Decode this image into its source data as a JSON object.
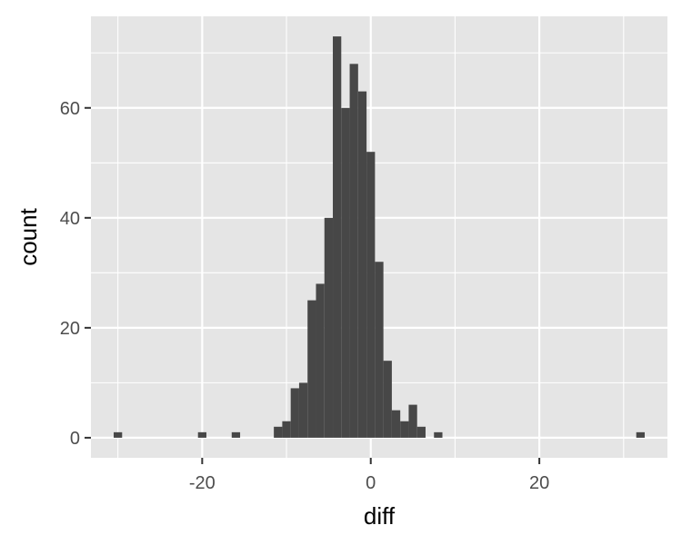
{
  "chart_data": {
    "type": "bar",
    "xlabel": "diff",
    "ylabel": "count",
    "xlim": [
      -33.2,
      35.2
    ],
    "ylim": [
      -3.65,
      76.65
    ],
    "x_ticks": [
      -20,
      0,
      20
    ],
    "x_tick_labels": [
      "-20",
      "0",
      "20"
    ],
    "y_ticks": [
      0,
      20,
      40,
      60
    ],
    "y_tick_labels": [
      "0",
      "20",
      "40",
      "60"
    ],
    "grid": true,
    "bin_width": 1,
    "bins": [
      {
        "x0": -30.5,
        "x1": -29.5,
        "count": 1
      },
      {
        "x0": -20.5,
        "x1": -19.5,
        "count": 1
      },
      {
        "x0": -16.5,
        "x1": -15.5,
        "count": 1
      },
      {
        "x0": -11.5,
        "x1": -10.5,
        "count": 2
      },
      {
        "x0": -10.5,
        "x1": -9.5,
        "count": 3
      },
      {
        "x0": -9.5,
        "x1": -8.5,
        "count": 9
      },
      {
        "x0": -8.5,
        "x1": -7.5,
        "count": 10
      },
      {
        "x0": -7.5,
        "x1": -6.5,
        "count": 25
      },
      {
        "x0": -6.5,
        "x1": -5.5,
        "count": 28
      },
      {
        "x0": -5.5,
        "x1": -4.5,
        "count": 40
      },
      {
        "x0": -4.5,
        "x1": -3.5,
        "count": 73
      },
      {
        "x0": -3.5,
        "x1": -2.5,
        "count": 60
      },
      {
        "x0": -2.5,
        "x1": -1.5,
        "count": 68
      },
      {
        "x0": -1.5,
        "x1": -0.5,
        "count": 63
      },
      {
        "x0": -0.5,
        "x1": 0.5,
        "count": 52
      },
      {
        "x0": 0.5,
        "x1": 1.5,
        "count": 32
      },
      {
        "x0": 1.5,
        "x1": 2.5,
        "count": 14
      },
      {
        "x0": 2.5,
        "x1": 3.5,
        "count": 5
      },
      {
        "x0": 3.5,
        "x1": 4.5,
        "count": 3
      },
      {
        "x0": 4.5,
        "x1": 5.5,
        "count": 6
      },
      {
        "x0": 5.5,
        "x1": 6.5,
        "count": 2
      },
      {
        "x0": 7.5,
        "x1": 8.5,
        "count": 1
      },
      {
        "x0": 31.5,
        "x1": 32.5,
        "count": 1
      }
    ],
    "colors": {
      "panel_background": "#e5e5e5",
      "grid_major": "#ffffff",
      "bar_fill": "#474747"
    }
  }
}
